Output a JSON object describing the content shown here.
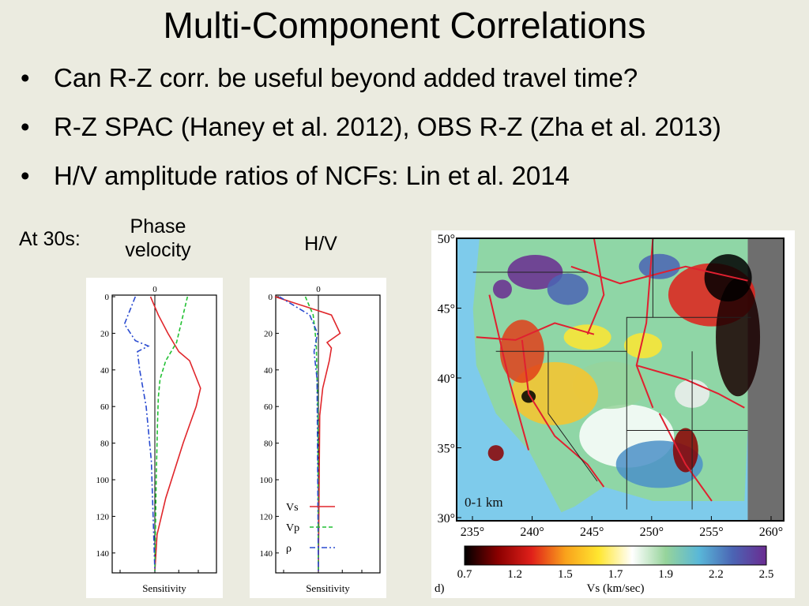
{
  "slide": {
    "title": "Multi-Component Correlations",
    "bullets": [
      "Can R-Z corr. be useful beyond added travel time?",
      "R-Z SPAC (Haney et al. 2012), OBS R-Z (Zha et al. 2013)",
      "H/V amplitude ratios of NCFs: Lin et al. 2014"
    ],
    "bullet_char": "•",
    "label_at": "At 30s:",
    "label_phase_1": "Phase",
    "label_phase_2": "velocity",
    "label_hv": "H/V"
  },
  "chart_data": [
    {
      "type": "line",
      "xlabel": "Sensitivity",
      "ylabel": "",
      "x_ticks": [
        "0"
      ],
      "y_ticks": [
        0,
        20,
        40,
        60,
        80,
        100,
        120,
        140
      ],
      "ylim": [
        0,
        150
      ],
      "y_inverted": true,
      "series": [
        {
          "color": "#e0262b",
          "dash": "solid",
          "x": [
            -0.1,
            0.08,
            0.3,
            0.55,
            0.8,
            1.05,
            0.95,
            0.8,
            0.65,
            0.45,
            0.25,
            0.05,
            0.0
          ],
          "y": [
            0,
            10,
            20,
            30,
            35,
            50,
            60,
            70,
            80,
            95,
            110,
            130,
            150
          ]
        },
        {
          "color": "#22c033",
          "dash": "dashed",
          "x": [
            0.75,
            0.6,
            0.5,
            0.25,
            0.12,
            0.08,
            0.06,
            0.03,
            0.0
          ],
          "y": [
            0,
            15,
            25,
            35,
            45,
            55,
            70,
            100,
            150
          ]
        },
        {
          "color": "#2a4bd0",
          "dash": "dashdot",
          "x": [
            -0.45,
            -0.7,
            -0.45,
            -0.15,
            -0.4,
            -0.35,
            -0.2,
            -0.08,
            0.0
          ],
          "y": [
            0,
            15,
            24,
            27,
            30,
            40,
            60,
            90,
            150
          ]
        }
      ]
    },
    {
      "type": "line",
      "xlabel": "Sensitivity",
      "ylabel": "",
      "x_ticks": [
        "0"
      ],
      "y_ticks": [
        0,
        20,
        40,
        60,
        80,
        100,
        120,
        140
      ],
      "ylim": [
        0,
        150
      ],
      "y_inverted": true,
      "series": [
        {
          "name": "Vs",
          "color": "#e0262b",
          "dash": "solid",
          "x": [
            -1.0,
            0.3,
            0.5,
            0.2,
            0.3,
            0.25,
            0.1,
            0.03,
            0.0
          ],
          "y": [
            0,
            10,
            20,
            25,
            28,
            35,
            50,
            65,
            150
          ]
        },
        {
          "name": "Vp",
          "color": "#22c033",
          "dash": "dashed",
          "x": [
            -0.3,
            -0.12,
            -0.05,
            -0.03,
            -0.01,
            0.0
          ],
          "y": [
            0,
            10,
            25,
            45,
            65,
            150
          ]
        },
        {
          "name": "ρ",
          "color": "#2a4bd0",
          "dash": "dashdot",
          "x": [
            -0.9,
            -0.2,
            -0.02,
            -0.1,
            -0.03,
            0.0
          ],
          "y": [
            0,
            10,
            20,
            30,
            45,
            150
          ]
        }
      ]
    },
    {
      "type": "heatmap",
      "map_label": "0-1 km",
      "panel_label": "d)",
      "x_ticks": [
        "235°",
        "240°",
        "245°",
        "250°",
        "255°",
        "260°"
      ],
      "y_ticks": [
        "50°",
        "45°",
        "40°",
        "35°",
        "30°"
      ],
      "colorbar_ticks": [
        "0.7",
        "1.2",
        "1.5",
        "1.7",
        "1.9",
        "2.2",
        "2.5"
      ],
      "colorbar_label": "Vs (km/sec)",
      "colorbar_colors": [
        "#000000",
        "#8b0000",
        "#e0201a",
        "#f9a11b",
        "#ffe630",
        "#ffffff",
        "#96d49b",
        "#59b7d8",
        "#4b64b4",
        "#6a2c91"
      ],
      "ocean_color": "#7ecbeb",
      "border_color": "#e02030"
    }
  ]
}
